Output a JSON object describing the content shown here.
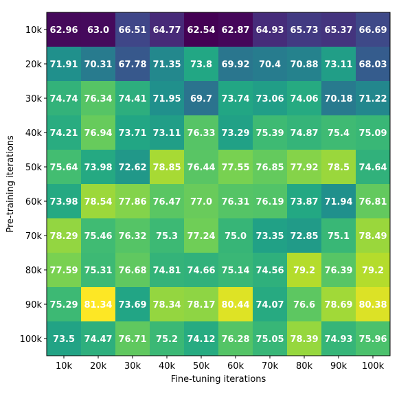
{
  "chart_data": {
    "type": "heatmap",
    "title": "",
    "xlabel": "Fine-tuning iterations",
    "ylabel": "Pre-training iterations",
    "x_categories": [
      "10k",
      "20k",
      "30k",
      "40k",
      "50k",
      "60k",
      "70k",
      "80k",
      "90k",
      "100k"
    ],
    "y_categories": [
      "10k",
      "20k",
      "30k",
      "40k",
      "50k",
      "60k",
      "70k",
      "80k",
      "90k",
      "100k"
    ],
    "values": [
      [
        62.96,
        63.0,
        66.51,
        64.77,
        62.54,
        62.87,
        64.93,
        65.73,
        65.37,
        66.69
      ],
      [
        71.91,
        70.31,
        67.78,
        71.35,
        73.8,
        69.92,
        70.4,
        70.88,
        73.11,
        68.03
      ],
      [
        74.74,
        76.34,
        74.41,
        71.95,
        69.7,
        73.74,
        73.06,
        74.06,
        70.18,
        71.22
      ],
      [
        74.21,
        76.94,
        73.71,
        73.11,
        76.33,
        73.29,
        75.39,
        74.87,
        75.4,
        75.09
      ],
      [
        75.64,
        73.98,
        72.62,
        78.85,
        76.44,
        77.55,
        76.85,
        77.92,
        78.5,
        74.64
      ],
      [
        73.98,
        78.54,
        77.86,
        76.47,
        77.0,
        76.31,
        76.19,
        73.87,
        71.94,
        76.81
      ],
      [
        78.29,
        75.46,
        76.32,
        75.3,
        77.24,
        75.0,
        73.35,
        72.85,
        75.1,
        78.49
      ],
      [
        77.59,
        75.31,
        76.68,
        74.81,
        74.66,
        75.14,
        74.56,
        79.2,
        76.39,
        79.2
      ],
      [
        75.29,
        81.34,
        73.69,
        78.34,
        78.17,
        80.44,
        74.07,
        76.6,
        78.69,
        80.38
      ],
      [
        73.5,
        74.47,
        76.71,
        75.2,
        74.12,
        76.28,
        75.05,
        78.39,
        74.93,
        75.96
      ]
    ],
    "value_labels": [
      [
        "62.96",
        "63.0",
        "66.51",
        "64.77",
        "62.54",
        "62.87",
        "64.93",
        "65.73",
        "65.37",
        "66.69"
      ],
      [
        "71.91",
        "70.31",
        "67.78",
        "71.35",
        "73.8",
        "69.92",
        "70.4",
        "70.88",
        "73.11",
        "68.03"
      ],
      [
        "74.74",
        "76.34",
        "74.41",
        "71.95",
        "69.7",
        "73.74",
        "73.06",
        "74.06",
        "70.18",
        "71.22"
      ],
      [
        "74.21",
        "76.94",
        "73.71",
        "73.11",
        "76.33",
        "73.29",
        "75.39",
        "74.87",
        "75.4",
        "75.09"
      ],
      [
        "75.64",
        "73.98",
        "72.62",
        "78.85",
        "76.44",
        "77.55",
        "76.85",
        "77.92",
        "78.5",
        "74.64"
      ],
      [
        "73.98",
        "78.54",
        "77.86",
        "76.47",
        "77.0",
        "76.31",
        "76.19",
        "73.87",
        "71.94",
        "76.81"
      ],
      [
        "78.29",
        "75.46",
        "76.32",
        "75.3",
        "77.24",
        "75.0",
        "73.35",
        "72.85",
        "75.1",
        "78.49"
      ],
      [
        "77.59",
        "75.31",
        "76.68",
        "74.81",
        "74.66",
        "75.14",
        "74.56",
        "79.2",
        "76.39",
        "79.2"
      ],
      [
        "75.29",
        "81.34",
        "73.69",
        "78.34",
        "78.17",
        "80.44",
        "74.07",
        "76.6",
        "78.69",
        "80.38"
      ],
      [
        "73.5",
        "74.47",
        "76.71",
        "75.2",
        "74.12",
        "76.28",
        "75.05",
        "78.39",
        "74.93",
        "75.96"
      ]
    ],
    "colormap": "viridis",
    "value_range": [
      62.54,
      81.34
    ],
    "grid": false,
    "legend": "none"
  }
}
